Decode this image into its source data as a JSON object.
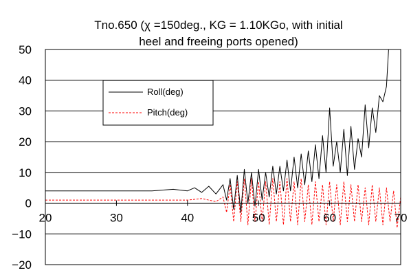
{
  "chart_data": {
    "type": "line",
    "title_lines": [
      "Tno.650 (χ =150deg., KG = 1.10KGo, with initial",
      "heel and freeing ports opened)"
    ],
    "xlabel": "",
    "ylabel": "",
    "xlim": [
      20,
      70
    ],
    "ylim": [
      -20,
      50
    ],
    "x_ticks": [
      20,
      30,
      40,
      50,
      60,
      70
    ],
    "y_ticks": [
      50,
      40,
      30,
      20,
      10,
      0,
      -10,
      -20
    ],
    "x_tick_labels": [
      "20",
      "30",
      "40",
      "50",
      "60",
      "70"
    ],
    "y_tick_labels": [
      "50",
      "40",
      "30",
      "20",
      "10",
      "0",
      "−10",
      "−20"
    ],
    "grid": "horizontal",
    "legend_position": "upper-left",
    "series": [
      {
        "name": "Roll(deg)",
        "color": "#000000",
        "style": "solid",
        "x": [
          20,
          25,
          30,
          35,
          38,
          40,
          41,
          42,
          43,
          44,
          45,
          45.5,
          46,
          46.5,
          47,
          47.5,
          48,
          48.5,
          49,
          49.5,
          50,
          50.5,
          51,
          51.5,
          52,
          52.5,
          53,
          53.5,
          54,
          54.5,
          55,
          55.5,
          56,
          56.5,
          57,
          57.5,
          58,
          58.5,
          59,
          59.5,
          60,
          60.5,
          61,
          61.5,
          62,
          62.5,
          63,
          63.5,
          64,
          64.5,
          65,
          65.5,
          66,
          66.5,
          67,
          67.5,
          68,
          68.3
        ],
        "y": [
          4,
          4,
          4,
          4,
          4.5,
          4,
          5,
          3.5,
          5.5,
          3,
          6,
          1,
          8,
          -2,
          9,
          -3,
          11,
          0,
          10,
          -1,
          11,
          1,
          10,
          2,
          12,
          3,
          12,
          4,
          14,
          4,
          15,
          5,
          16,
          6,
          17,
          7,
          19,
          8,
          22,
          10,
          31,
          12,
          20,
          10,
          24,
          9,
          25,
          11,
          21,
          15,
          32,
          18,
          31,
          23,
          35,
          33,
          38,
          50
        ]
      },
      {
        "name": "Pitch(deg)",
        "color": "#ff0000",
        "style": "dashed",
        "x": [
          20,
          25,
          30,
          35,
          40,
          42,
          44,
          45,
          45.5,
          46,
          46.5,
          47,
          47.5,
          48,
          48.5,
          49,
          49.5,
          50,
          50.5,
          51,
          51.5,
          52,
          52.5,
          53,
          53.5,
          54,
          54.5,
          55,
          55.5,
          56,
          56.5,
          57,
          57.5,
          58,
          58.5,
          59,
          59.5,
          60,
          60.5,
          61,
          61.5,
          62,
          62.5,
          63,
          63.5,
          64,
          64.5,
          65,
          65.5,
          66,
          66.5,
          67,
          67.5,
          68,
          68.5,
          69,
          69.5,
          70
        ],
        "y": [
          1,
          1,
          1,
          1,
          1,
          1.5,
          0.5,
          2,
          -3,
          6,
          -6,
          7,
          -6,
          8,
          -7,
          8,
          -6,
          7,
          -6,
          7,
          -7,
          8,
          -6,
          7,
          -7,
          8,
          -6,
          7,
          -7,
          8,
          -6,
          6,
          -7,
          7,
          -6,
          6,
          -7,
          7,
          -6,
          6,
          -7,
          7,
          -6,
          6,
          -6,
          6,
          -6,
          5,
          -7,
          6,
          -6,
          5,
          -7,
          5,
          -6,
          4,
          -8,
          2
        ]
      }
    ]
  },
  "colors": {
    "axis": "#000000",
    "grid": "#000000",
    "background": "#ffffff"
  }
}
